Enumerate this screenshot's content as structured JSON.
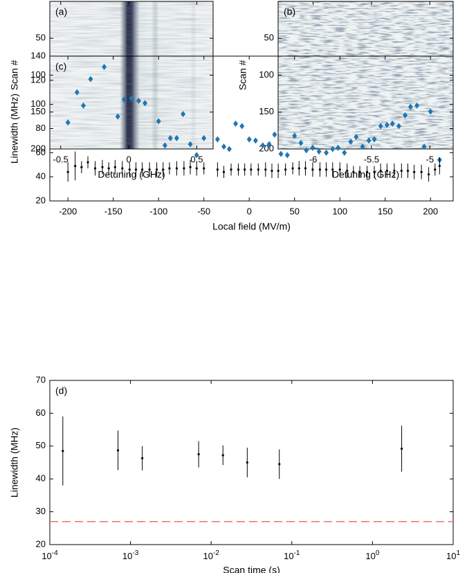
{
  "chart_data": [
    {
      "type": "heatmap",
      "label": "(a)",
      "xlabel": "Detuning (GHz)",
      "ylabel": "Scan #",
      "xlim": [
        -0.58,
        0.62
      ],
      "xticks": [
        -0.5,
        0,
        0.5
      ],
      "ylim": [
        0,
        200
      ],
      "yticks": [
        50,
        100,
        150,
        200
      ],
      "y_reversed": true
    },
    {
      "type": "heatmap",
      "label": "(b)",
      "xlabel": "Detuning (GHz)",
      "ylabel": "Scan #",
      "xlim": [
        -6.3,
        -4.8
      ],
      "xticks": [
        -6,
        -5.5,
        -5
      ],
      "ylim": [
        0,
        200
      ],
      "yticks": [
        50,
        100,
        150,
        200
      ],
      "y_reversed": true
    },
    {
      "type": "scatter",
      "label": "(c)",
      "xlabel": "Local field (MV/m)",
      "ylabel": "Linewidth (MHz)",
      "xlim": [
        -220,
        225
      ],
      "xticks": [
        -200,
        -150,
        -100,
        -50,
        0,
        50,
        100,
        150,
        200
      ],
      "ylim": [
        20,
        140
      ],
      "yticks": [
        20,
        40,
        60,
        80,
        100,
        120,
        140
      ],
      "series": [
        {
          "color": "#1f77b4",
          "marker": "diamond",
          "x": [
            -200,
            -190,
            -183,
            -175,
            -160,
            -145,
            -138,
            -130,
            -122,
            -115,
            -100,
            -93,
            -87,
            -80,
            -73,
            -65,
            -58,
            -50,
            -35,
            -28,
            -22,
            -15,
            -8,
            0,
            7,
            15,
            22,
            28,
            35,
            42,
            50,
            57,
            63,
            70,
            77,
            85,
            92,
            98,
            105,
            112,
            118,
            125,
            132,
            138,
            145,
            152,
            158,
            165,
            172,
            178,
            185,
            193,
            200,
            210
          ],
          "values": [
            85,
            110,
            99,
            121,
            131,
            90,
            104,
            105,
            103,
            101,
            86,
            66,
            72,
            72,
            92,
            67,
            58,
            72,
            71,
            65,
            63,
            84,
            82,
            71,
            70,
            66,
            67,
            75,
            59,
            58,
            74,
            68,
            62,
            64,
            61,
            60,
            63,
            64,
            60,
            69,
            73,
            65,
            70,
            71,
            82,
            83,
            84,
            82,
            91,
            98,
            99,
            65,
            94,
            54
          ]
        },
        {
          "color": "#000000",
          "marker": "dot",
          "x": [
            -200,
            -192,
            -185,
            -178,
            -170,
            -162,
            -155,
            -148,
            -140,
            -132,
            -125,
            -118,
            -110,
            -102,
            -95,
            -88,
            -80,
            -72,
            -65,
            -58,
            -50,
            -35,
            -28,
            -20,
            -12,
            -5,
            2,
            10,
            18,
            25,
            32,
            40,
            48,
            55,
            62,
            70,
            78,
            85,
            92,
            100,
            108,
            115,
            122,
            130,
            138,
            145,
            152,
            160,
            168,
            175,
            182,
            190,
            198,
            205,
            210
          ],
          "values": [
            44,
            49,
            48,
            52,
            47,
            48,
            47,
            48,
            47,
            46,
            46,
            46,
            46,
            46,
            46,
            47,
            47,
            47,
            48,
            47,
            47,
            46,
            44,
            46,
            46,
            46,
            46,
            46,
            46,
            45,
            45,
            46,
            47,
            47,
            47,
            46,
            46,
            46,
            46,
            46,
            45,
            44,
            44,
            44,
            44,
            45,
            45,
            45,
            45,
            45,
            44,
            44,
            42,
            46,
            49
          ],
          "errors": [
            8,
            12,
            5,
            5,
            6,
            6,
            5,
            6,
            6,
            6,
            6,
            6,
            6,
            6,
            6,
            5,
            6,
            6,
            6,
            6,
            5,
            6,
            5,
            5,
            5,
            5,
            5,
            5,
            6,
            6,
            6,
            5,
            5,
            6,
            6,
            6,
            6,
            6,
            6,
            6,
            6,
            5,
            5,
            5,
            5,
            6,
            6,
            6,
            6,
            6,
            6,
            6,
            6,
            5,
            7
          ]
        }
      ]
    },
    {
      "type": "scatter",
      "label": "(d)",
      "xlabel": "Scan time (s)",
      "ylabel": "Linewidth (MHz)",
      "xlog": true,
      "xlim": [
        0.0001,
        10
      ],
      "xticks": [
        {
          "value": 0.0001,
          "label": "10",
          "exponent": "-4"
        },
        {
          "value": 0.001,
          "label": "10",
          "exponent": "-3"
        },
        {
          "value": 0.01,
          "label": "10",
          "exponent": "-2"
        },
        {
          "value": 0.1,
          "label": "10",
          "exponent": "-1"
        },
        {
          "value": 1,
          "label": "10",
          "exponent": "0"
        },
        {
          "value": 10,
          "label": "10",
          "exponent": "1"
        }
      ],
      "ylim": [
        20,
        70
      ],
      "yticks": [
        20,
        30,
        40,
        50,
        60,
        70
      ],
      "series": [
        {
          "color": "#000000",
          "marker": "dot",
          "x": [
            0.000145,
            0.0007,
            0.0014,
            0.007,
            0.014,
            0.028,
            0.07,
            2.3
          ],
          "values": [
            48.5,
            48.7,
            46.3,
            47.5,
            47.2,
            45,
            44.5,
            49.2
          ],
          "errors": [
            10.5,
            6,
            3.7,
            4,
            3,
            4.5,
            4.5,
            7
          ]
        }
      ],
      "hlines": [
        {
          "value": 27,
          "color": "#e8665a",
          "dash": true
        }
      ]
    }
  ]
}
